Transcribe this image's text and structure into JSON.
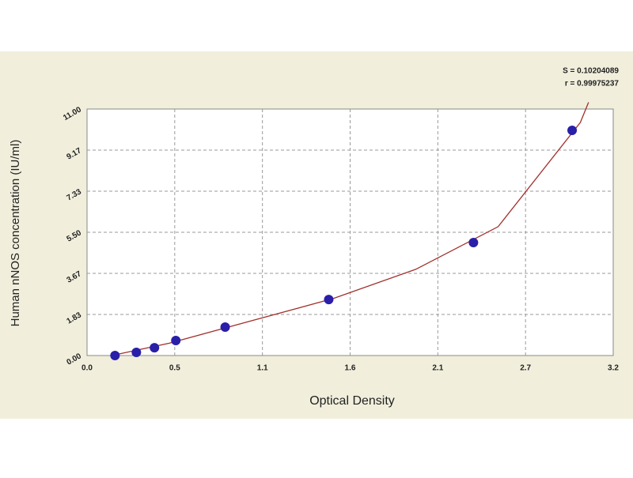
{
  "chart_data": {
    "type": "scatter",
    "annotations": [
      "S = 0.10204089",
      "r = 0.99975237"
    ],
    "xlabel": "Optical Density",
    "ylabel": "Human nNOS concentration (IU/ml)",
    "x": [
      0.17,
      0.3,
      0.41,
      0.54,
      0.84,
      1.47,
      2.35,
      2.95
    ],
    "values": [
      0.0,
      0.14,
      0.35,
      0.67,
      1.27,
      2.5,
      5.04,
      10.05
    ],
    "color": "#2a1fa8",
    "fit": {
      "x": [
        0.15,
        0.5,
        1.0,
        1.5,
        2.0,
        2.5,
        3.0,
        3.05
      ],
      "values": [
        0.0,
        0.55,
        1.55,
        2.55,
        3.85,
        5.75,
        10.4,
        11.3
      ],
      "color": "#a0302c"
    },
    "xlim": [
      0,
      3.2
    ],
    "xticks": [
      {
        "value": 0,
        "label": "0.0"
      },
      {
        "value": 0.5333,
        "label": "0.5"
      },
      {
        "value": 1.0667,
        "label": "1.1"
      },
      {
        "value": 1.6,
        "label": "1.6"
      },
      {
        "value": 2.1333,
        "label": "2.1"
      },
      {
        "value": 2.6667,
        "label": "2.7"
      },
      3.2
    ],
    "ylim": [
      0,
      11
    ],
    "yticks": [
      {
        "value": 0,
        "label": "0.00"
      },
      {
        "value": 1.8333,
        "label": "1.83"
      },
      {
        "value": 3.6667,
        "label": "3.67"
      },
      {
        "value": 5.5,
        "label": "5.50"
      },
      {
        "value": 7.3333,
        "label": "7.33"
      },
      {
        "value": 9.1667,
        "label": "9.17"
      },
      {
        "value": 11,
        "label": "11.00"
      }
    ],
    "grid": true
  }
}
